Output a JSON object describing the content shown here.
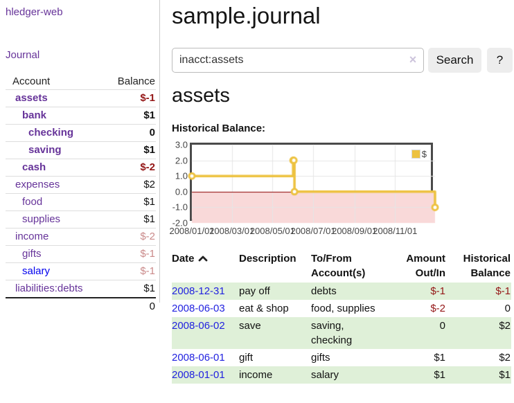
{
  "sidebar": {
    "app_title": "hledger-web",
    "journal_label": "Journal",
    "accounts_table": {
      "account_header": "Account",
      "balance_header": "Balance",
      "rows": [
        {
          "name": "assets",
          "balance": "$-1",
          "indent": 0,
          "bold": true
        },
        {
          "name": "bank",
          "balance": "$1",
          "indent": 1,
          "bold": true
        },
        {
          "name": "checking",
          "balance": "0",
          "indent": 2,
          "bold": true
        },
        {
          "name": "saving",
          "balance": "$1",
          "indent": 2,
          "bold": true
        },
        {
          "name": "cash",
          "balance": "$-2",
          "indent": 1,
          "bold": true
        },
        {
          "name": "expenses",
          "balance": "$2",
          "indent": 0,
          "bold": false
        },
        {
          "name": "food",
          "balance": "$1",
          "indent": 1,
          "bold": false
        },
        {
          "name": "supplies",
          "balance": "$1",
          "indent": 1,
          "bold": false
        },
        {
          "name": "income",
          "balance": "$-2",
          "indent": 0,
          "bold": false
        },
        {
          "name": "gifts",
          "balance": "$-1",
          "indent": 1,
          "bold": false
        },
        {
          "name": "salary",
          "balance": "$-1",
          "indent": 1,
          "bold": false
        },
        {
          "name": "liabilities:debts",
          "balance": "$1",
          "indent": 0,
          "bold": false
        }
      ],
      "total": "0"
    }
  },
  "header": {
    "title": "sample.journal"
  },
  "search": {
    "value": "inacct:assets",
    "clear_icon": "×",
    "search_button_label": "Search",
    "help_button_label": "?"
  },
  "account_page": {
    "title": "assets",
    "chart_label": "Historical Balance:"
  },
  "chart_data": {
    "type": "line",
    "step": true,
    "title": "Historical Balance:",
    "x": [
      "2008-01-01",
      "2008-06-01",
      "2008-06-02",
      "2008-06-03",
      "2008-12-31"
    ],
    "series": [
      {
        "name": "$",
        "values": [
          1,
          2,
          2,
          0,
          -1
        ]
      }
    ],
    "xlim": [
      "2008-01-01",
      "2008-12-31"
    ],
    "ylim": [
      -2,
      3
    ],
    "x_ticks": [
      "2008/01/01",
      "2008/03/01",
      "2008/05/01",
      "2008/07/01",
      "2008/09/01",
      "2008/11/01"
    ],
    "y_ticks": [
      "3.0",
      "2.0",
      "1.0",
      "0.0",
      "-1.0",
      "-2.0"
    ],
    "grid": true,
    "legend": {
      "position": "top-right",
      "label": "$"
    },
    "colors": {
      "series": "#edc240",
      "marker_fill": "#ffffff",
      "negative_region": "#f9d9d9",
      "zero_line": "#8b0000",
      "grid": "#e6e6e6",
      "border": "#4a4a4a",
      "tick_text": "#444444"
    }
  },
  "register_table": {
    "headers": [
      "Date",
      "Description",
      "To/From Account(s)",
      "Amount Out/In",
      "Historical Balance"
    ],
    "sort_icon": "chevron-up",
    "rows": [
      {
        "date": "2008-12-31",
        "description": "pay off",
        "accounts": "debts",
        "amount": "$-1",
        "balance": "$-1"
      },
      {
        "date": "2008-06-03",
        "description": "eat & shop",
        "accounts": "food, supplies",
        "amount": "$-2",
        "balance": "0"
      },
      {
        "date": "2008-06-02",
        "description": "save",
        "accounts": "saving, checking",
        "amount": "0",
        "balance": "$2"
      },
      {
        "date": "2008-06-01",
        "description": "gift",
        "accounts": "gifts",
        "amount": "$1",
        "balance": "$2"
      },
      {
        "date": "2008-01-01",
        "description": "income",
        "accounts": "salary",
        "amount": "$1",
        "balance": "$1"
      }
    ]
  },
  "colors": {
    "link_purple": "#663399",
    "link_blue": "#0000ee",
    "negative_strong": "#941616",
    "negative_muted": "#ca8a8a",
    "row_green": "#dff0d8",
    "accent_yellow": "#edc240"
  }
}
